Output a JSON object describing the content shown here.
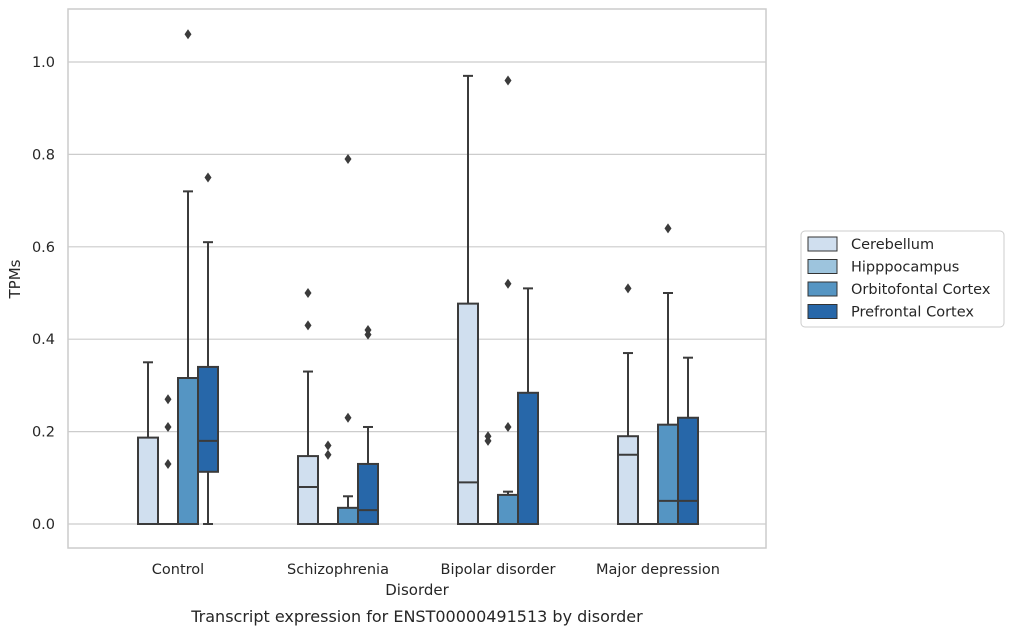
{
  "chart_data": {
    "type": "boxplot",
    "title": "",
    "caption": "Transcript expression for ENST00000491513 by disorder",
    "xlabel": "Disorder",
    "ylabel": "TPMs",
    "ylim": [
      -0.05,
      1.115
    ],
    "yticks": [
      {
        "value": 0.0,
        "label": "0.0"
      },
      {
        "value": 0.2,
        "label": "0.2"
      },
      {
        "value": 0.4,
        "label": "0.4"
      },
      {
        "value": 0.6,
        "label": "0.6"
      },
      {
        "value": 0.8,
        "label": "0.8"
      },
      {
        "value": 1.0,
        "label": "1.0"
      }
    ],
    "grid": "horizontal",
    "legend_position": "right",
    "categories": [
      "Control",
      "Schizophrenia",
      "Bipolar disorder",
      "Major depression"
    ],
    "series": [
      {
        "name": "Cerebellum",
        "color": "#d0dfef",
        "boxes": [
          {
            "whislo": 0.0,
            "q1": 0.0,
            "med": 0.0,
            "q3": 0.187,
            "whishi": 0.35,
            "fliers": []
          },
          {
            "whislo": 0.0,
            "q1": 0.0,
            "med": 0.08,
            "q3": 0.147,
            "whishi": 0.33,
            "fliers": [
              0.43,
              0.5
            ]
          },
          {
            "whislo": 0.0,
            "q1": 0.0,
            "med": 0.09,
            "q3": 0.477,
            "whishi": 0.97,
            "fliers": []
          },
          {
            "whislo": 0.0,
            "q1": 0.0,
            "med": 0.15,
            "q3": 0.19,
            "whishi": 0.37,
            "fliers": [
              0.51
            ]
          }
        ]
      },
      {
        "name": "Hipppocampus",
        "color": "#9dc4dd",
        "boxes": [
          {
            "whislo": 0.0,
            "q1": 0.0,
            "med": 0.0,
            "q3": 0.0,
            "whishi": 0.0,
            "fliers": [
              0.13,
              0.21,
              0.27
            ]
          },
          {
            "whislo": 0.0,
            "q1": 0.0,
            "med": 0.0,
            "q3": 0.0,
            "whishi": 0.0,
            "fliers": [
              0.15,
              0.17
            ]
          },
          {
            "whislo": 0.0,
            "q1": 0.0,
            "med": 0.0,
            "q3": 0.0,
            "whishi": 0.0,
            "fliers": [
              0.18,
              0.19
            ]
          },
          {
            "whislo": 0.0,
            "q1": 0.0,
            "med": 0.0,
            "q3": 0.0,
            "whishi": 0.0,
            "fliers": []
          }
        ]
      },
      {
        "name": "Orbitofontal Cortex",
        "color": "#5595c3",
        "boxes": [
          {
            "whislo": 0.0,
            "q1": 0.0,
            "med": 0.0,
            "q3": 0.316,
            "whishi": 0.72,
            "fliers": [
              1.06
            ]
          },
          {
            "whislo": 0.0,
            "q1": 0.0,
            "med": 0.0,
            "q3": 0.035,
            "whishi": 0.06,
            "fliers": [
              0.23,
              0.79
            ]
          },
          {
            "whislo": 0.0,
            "q1": 0.0,
            "med": 0.0,
            "q3": 0.063,
            "whishi": 0.07,
            "fliers": [
              0.21,
              0.52,
              0.96
            ]
          },
          {
            "whislo": 0.0,
            "q1": 0.0,
            "med": 0.05,
            "q3": 0.215,
            "whishi": 0.5,
            "fliers": [
              0.64
            ]
          }
        ]
      },
      {
        "name": "Prefrontal Cortex",
        "color": "#2767a9",
        "boxes": [
          {
            "whislo": 0.0,
            "q1": 0.113,
            "med": 0.18,
            "q3": 0.34,
            "whishi": 0.61,
            "fliers": [
              0.75
            ]
          },
          {
            "whislo": 0.0,
            "q1": 0.0,
            "med": 0.03,
            "q3": 0.13,
            "whishi": 0.21,
            "fliers": [
              0.41,
              0.42
            ]
          },
          {
            "whislo": 0.0,
            "q1": 0.0,
            "med": 0.0,
            "q3": 0.284,
            "whishi": 0.51,
            "fliers": []
          },
          {
            "whislo": 0.0,
            "q1": 0.0,
            "med": 0.05,
            "q3": 0.23,
            "whishi": 0.36,
            "fliers": []
          }
        ]
      }
    ]
  }
}
